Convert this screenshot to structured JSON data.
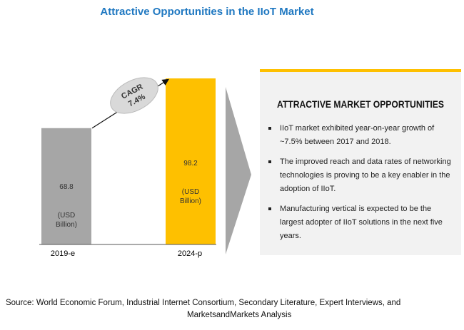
{
  "title": "Attractive Opportunities in the IIoT Market",
  "chart_data": {
    "type": "bar",
    "categories": [
      "2019-e",
      "2024-p"
    ],
    "values": [
      68.8,
      98.2
    ],
    "value_labels": [
      "68.8",
      "98.2"
    ],
    "unit_label": "(USD Billion)",
    "unit_lines": [
      "(USD",
      "Billion)"
    ],
    "cagr_label": "CAGR",
    "cagr_value": "7.4%",
    "colors": [
      "#a6a6a6",
      "#fec000"
    ]
  },
  "panel": {
    "heading": "ATTRACTIVE MARKET OPPORTUNITIES",
    "accent": "#fec000",
    "bullets": [
      "IIoT market exhibited year-on-year growth of ~7.5% between 2017 and 2018.",
      "The improved reach and data rates of networking technologies is proving to be a key enabler in the adoption of IIoT.",
      "Manufacturing vertical is expected to be the largest adopter of IIoT solutions in the next five years."
    ]
  },
  "source": {
    "line1": "Source: World Economic Forum, Industrial Internet Consortium, Secondary Literature, Expert Interviews, and",
    "line2": "MarketsandMarkets  Analysis"
  }
}
